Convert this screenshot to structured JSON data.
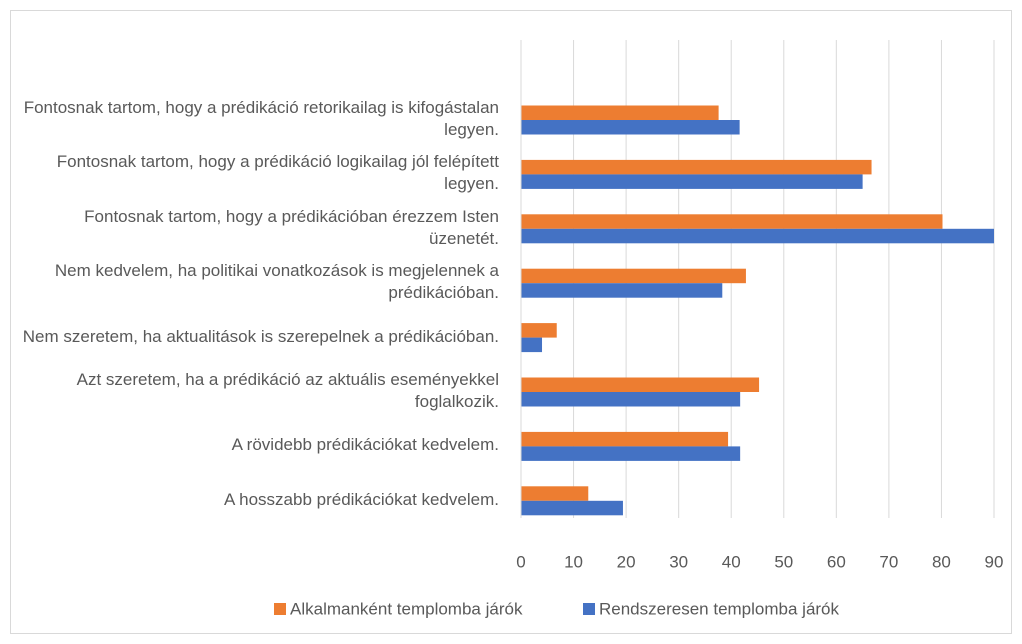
{
  "chart_data": {
    "type": "hbar",
    "categories": [
      "Fontosnak tartom, hogy a prédikáció retorikailag is kifogástalan legyen.",
      "Fontosnak tartom, hogy a prédikáció logikailag jól felépített legyen.",
      "Fontosnak tartom, hogy a prédikációban érezzem Isten üzenetét.",
      "Nem kedvelem, ha politikai vonatkozások is megjelennek a prédikációban.",
      "Nem szeretem, ha aktualitások is szerepelnek a prédikációban.",
      "Azt szeretem, ha a prédikáció az aktuális eseményekkel foglalkozik.",
      "A rövidebb prédikációkat kedvelem.",
      "A hosszabb prédikációkat kedvelem."
    ],
    "series": [
      {
        "name": "Alkalmanként templomba járók",
        "color": "#ed7d31",
        "values": [
          37.6,
          66.7,
          80.2,
          42.8,
          6.8,
          45.3,
          39.4,
          12.8
        ]
      },
      {
        "name": "Rendszeresen templomba járók",
        "color": "#4472c4",
        "values": [
          41.6,
          65,
          90,
          38.3,
          4,
          41.7,
          41.7,
          19.4
        ]
      }
    ],
    "xlim": [
      0,
      90
    ],
    "xticks": [
      0,
      10,
      20,
      30,
      40,
      50,
      60,
      70,
      80,
      90
    ],
    "grid": true,
    "legend": "bottom"
  }
}
